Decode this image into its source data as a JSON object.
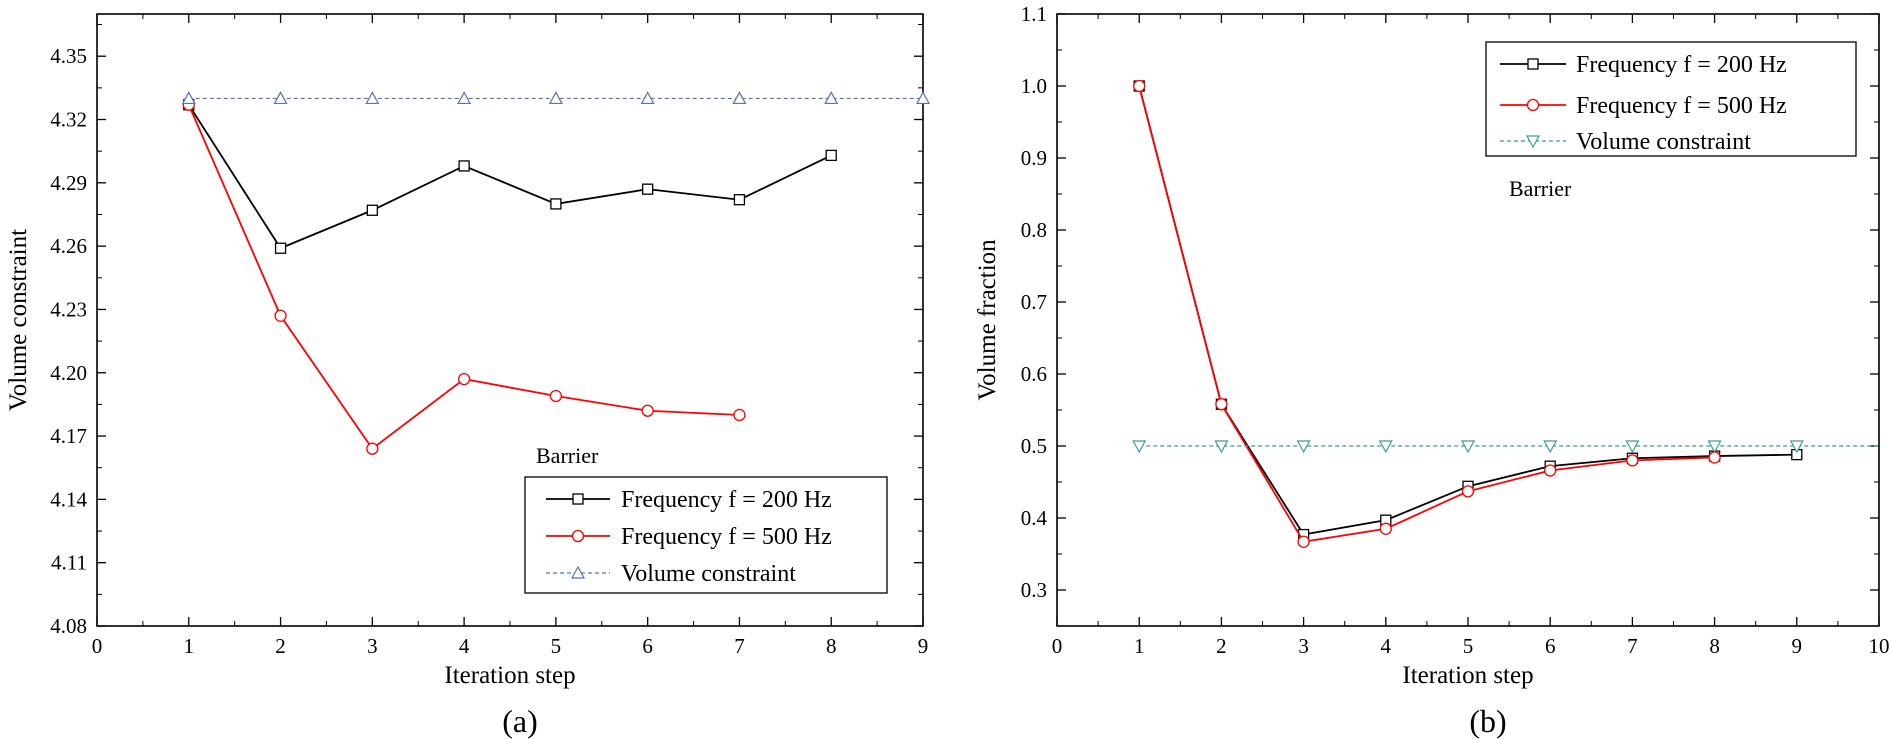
{
  "chart_data": [
    {
      "panel": "(a)",
      "type": "line",
      "xlabel": "Iteration step",
      "ylabel": "Volume constraint",
      "xlim": [
        0,
        9
      ],
      "ylim": [
        4.08,
        4.37
      ],
      "x_ticks": [
        "0",
        "1",
        "2",
        "3",
        "4",
        "5",
        "6",
        "7",
        "8",
        "9"
      ],
      "y_ticks": [
        "4.08",
        "4.11",
        "4.14",
        "4.17",
        "4.20",
        "4.23",
        "4.26",
        "4.29",
        "4.32",
        "4.35"
      ],
      "grid": false,
      "legend_position": "bottom-right",
      "annotation": "Barrier",
      "series": [
        {
          "name": "Frequency f = 200 Hz",
          "marker": "square",
          "color": "#000000",
          "x": [
            1,
            2,
            3,
            4,
            5,
            6,
            7,
            8
          ],
          "y": [
            4.327,
            4.259,
            4.277,
            4.298,
            4.28,
            4.287,
            4.282,
            4.303
          ]
        },
        {
          "name": "Frequency f = 500 Hz",
          "marker": "circle",
          "color": "#ff0000",
          "x": [
            1,
            2,
            3,
            4,
            5,
            6,
            7
          ],
          "y": [
            4.327,
            4.227,
            4.164,
            4.197,
            4.189,
            4.182,
            4.18
          ]
        },
        {
          "name": "Volume constraint",
          "marker": "triangle-up",
          "color": "#5b6fc0",
          "dashed": true,
          "x": [
            1,
            2,
            3,
            4,
            5,
            6,
            7,
            8,
            9
          ],
          "y": [
            4.33,
            4.33,
            4.33,
            4.33,
            4.33,
            4.33,
            4.33,
            4.33,
            4.33
          ],
          "extend_to": [
            0,
            9
          ]
        }
      ]
    },
    {
      "panel": "(b)",
      "type": "line",
      "xlabel": "Iteration step",
      "ylabel": "Volume fraction",
      "xlim": [
        0,
        10
      ],
      "ylim": [
        0.25,
        1.1
      ],
      "x_ticks": [
        "0",
        "1",
        "2",
        "3",
        "4",
        "5",
        "6",
        "7",
        "8",
        "9",
        "10"
      ],
      "y_ticks": [
        "0.3",
        "0.4",
        "0.5",
        "0.6",
        "0.7",
        "0.8",
        "0.9",
        "1.0",
        "1.1"
      ],
      "grid": false,
      "legend_position": "top-right",
      "annotation": "Barrier",
      "series": [
        {
          "name": "Frequency f = 200 Hz",
          "marker": "square",
          "color": "#000000",
          "x": [
            1,
            2,
            3,
            4,
            5,
            6,
            7,
            8,
            9
          ],
          "y": [
            1.0,
            0.558,
            0.377,
            0.397,
            0.444,
            0.472,
            0.483,
            0.486,
            0.488
          ]
        },
        {
          "name": "Frequency f = 500 Hz",
          "marker": "circle",
          "color": "#ff0000",
          "x": [
            1,
            2,
            3,
            4,
            5,
            6,
            7,
            8
          ],
          "y": [
            1.0,
            0.558,
            0.367,
            0.385,
            0.437,
            0.466,
            0.48,
            0.484
          ]
        },
        {
          "name": "Volume constraint",
          "marker": "triangle-down",
          "color": "#3a9c98",
          "dashed": true,
          "x": [
            1,
            2,
            3,
            4,
            5,
            6,
            7,
            8,
            9
          ],
          "y": [
            0.5,
            0.5,
            0.5,
            0.5,
            0.5,
            0.5,
            0.5,
            0.5,
            0.5
          ],
          "extend_to": [
            0,
            10
          ]
        }
      ]
    }
  ]
}
